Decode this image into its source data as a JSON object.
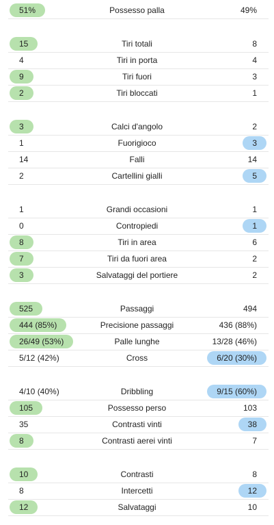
{
  "colors": {
    "home_highlight": "#b7e1ad",
    "away_highlight": "#aed6f5",
    "divider": "#e6e6e6"
  },
  "groups": [
    {
      "rows": [
        {
          "label": "Possesso palla",
          "home": "51%",
          "away": "49%",
          "highlight": "home"
        }
      ]
    },
    {
      "rows": [
        {
          "label": "Tiri totali",
          "home": "15",
          "away": "8",
          "highlight": "home"
        },
        {
          "label": "Tiri in porta",
          "home": "4",
          "away": "4",
          "highlight": "none"
        },
        {
          "label": "Tiri fuori",
          "home": "9",
          "away": "3",
          "highlight": "home"
        },
        {
          "label": "Tiri bloccati",
          "home": "2",
          "away": "1",
          "highlight": "home"
        }
      ]
    },
    {
      "rows": [
        {
          "label": "Calci d'angolo",
          "home": "3",
          "away": "2",
          "highlight": "home"
        },
        {
          "label": "Fuorigioco",
          "home": "1",
          "away": "3",
          "highlight": "away"
        },
        {
          "label": "Falli",
          "home": "14",
          "away": "14",
          "highlight": "none"
        },
        {
          "label": "Cartellini gialli",
          "home": "2",
          "away": "5",
          "highlight": "away"
        }
      ]
    },
    {
      "rows": [
        {
          "label": "Grandi occasioni",
          "home": "1",
          "away": "1",
          "highlight": "none"
        },
        {
          "label": "Contropiedi",
          "home": "0",
          "away": "1",
          "highlight": "away"
        },
        {
          "label": "Tiri in area",
          "home": "8",
          "away": "6",
          "highlight": "home"
        },
        {
          "label": "Tiri da fuori area",
          "home": "7",
          "away": "2",
          "highlight": "home"
        },
        {
          "label": "Salvataggi del portiere",
          "home": "3",
          "away": "2",
          "highlight": "home"
        }
      ]
    },
    {
      "rows": [
        {
          "label": "Passaggi",
          "home": "525",
          "away": "494",
          "highlight": "home"
        },
        {
          "label": "Precisione passaggi",
          "home": "444 (85%)",
          "away": "436 (88%)",
          "highlight": "home"
        },
        {
          "label": "Palle lunghe",
          "home": "26/49 (53%)",
          "away": "13/28 (46%)",
          "highlight": "home"
        },
        {
          "label": "Cross",
          "home": "5/12 (42%)",
          "away": "6/20 (30%)",
          "highlight": "away"
        }
      ]
    },
    {
      "rows": [
        {
          "label": "Dribbling",
          "home": "4/10 (40%)",
          "away": "9/15 (60%)",
          "highlight": "away"
        },
        {
          "label": "Possesso perso",
          "home": "105",
          "away": "103",
          "highlight": "home"
        },
        {
          "label": "Contrasti vinti",
          "home": "35",
          "away": "38",
          "highlight": "away"
        },
        {
          "label": "Contrasti aerei vinti",
          "home": "8",
          "away": "7",
          "highlight": "home"
        }
      ]
    },
    {
      "rows": [
        {
          "label": "Contrasti",
          "home": "10",
          "away": "8",
          "highlight": "home"
        },
        {
          "label": "Intercetti",
          "home": "8",
          "away": "12",
          "highlight": "away"
        },
        {
          "label": "Salvataggi",
          "home": "12",
          "away": "10",
          "highlight": "home"
        }
      ]
    }
  ]
}
